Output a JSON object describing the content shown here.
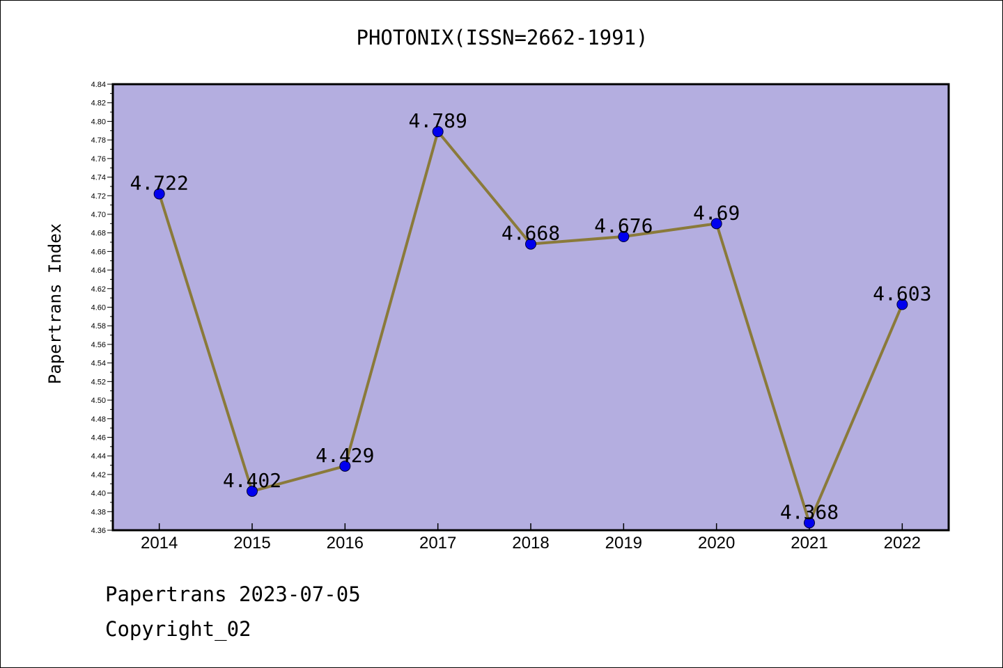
{
  "colors": {
    "plot_background": "#b4aee0",
    "line": "#8a7a3a",
    "marker": "#0000ee"
  },
  "chart_data": {
    "type": "line",
    "title": "PHOTONIX(ISSN=2662-1991)",
    "xlabel": "",
    "ylabel": "Papertrans Index",
    "categories": [
      "2014",
      "2015",
      "2016",
      "2017",
      "2018",
      "2019",
      "2020",
      "2021",
      "2022"
    ],
    "series": [
      {
        "values": [
          4.722,
          4.402,
          4.429,
          4.789,
          4.668,
          4.676,
          4.69,
          4.368,
          4.603
        ]
      }
    ],
    "data_labels": [
      "4.722",
      "4.402",
      "4.429",
      "4.789",
      "4.668",
      "4.676",
      "4.69",
      "4.368",
      "4.603"
    ],
    "ylim": [
      4.36,
      4.84
    ],
    "y_ticks": [
      "4.36",
      "4.38",
      "4.40",
      "4.42",
      "4.44",
      "4.46",
      "4.48",
      "4.50",
      "4.52",
      "4.54",
      "4.56",
      "4.58",
      "4.60",
      "4.62",
      "4.64",
      "4.66",
      "4.68",
      "4.70",
      "4.72",
      "4.74",
      "4.76",
      "4.78",
      "4.80",
      "4.82",
      "4.84"
    ],
    "grid": false,
    "legend": "none"
  },
  "footer": {
    "line1": "Papertrans 2023-07-05",
    "line2": "Copyright_02"
  }
}
